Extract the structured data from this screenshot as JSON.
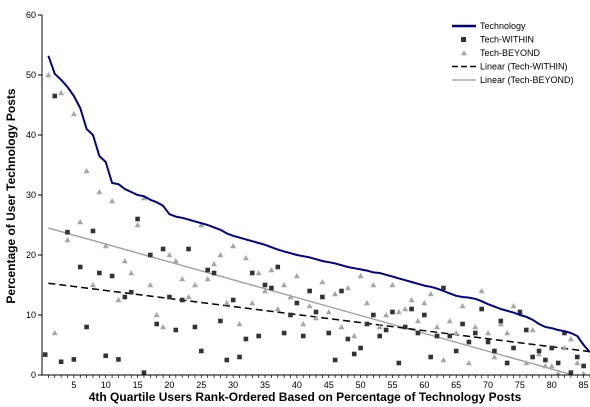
{
  "chart_data": {
    "type": "line",
    "xlabel": "4th Quartile Users Rank-Ordered Based on Percentage of Technology Posts",
    "ylabel": "Percentage of User Technology Posts",
    "xlim": [
      0,
      86
    ],
    "ylim": [
      0,
      60
    ],
    "xticks": [
      5,
      10,
      15,
      20,
      25,
      30,
      35,
      40,
      45,
      50,
      55,
      60,
      65,
      70,
      75,
      80,
      85
    ],
    "yticks": [
      0,
      10,
      20,
      30,
      40,
      50,
      60
    ],
    "grid": false,
    "legend_position": "top-right",
    "colors": {
      "technology": "#00008b",
      "within": "#333333",
      "beyond": "#a6a6a6",
      "linear_within": "#000000",
      "linear_beyond": "#a6a6a6"
    },
    "series": [
      {
        "name": "Technology",
        "kind": "line",
        "x": [
          1,
          2,
          3,
          4,
          5,
          6,
          7,
          8,
          9,
          10,
          11,
          12,
          13,
          14,
          15,
          16,
          17,
          18,
          19,
          20,
          21,
          22,
          23,
          24,
          25,
          26,
          27,
          28,
          29,
          30,
          31,
          32,
          33,
          34,
          35,
          36,
          37,
          38,
          39,
          40,
          41,
          42,
          43,
          44,
          45,
          46,
          47,
          48,
          49,
          50,
          51,
          52,
          53,
          54,
          55,
          56,
          57,
          58,
          59,
          60,
          61,
          62,
          63,
          64,
          65,
          66,
          67,
          68,
          69,
          70,
          71,
          72,
          73,
          74,
          75,
          76,
          77,
          78,
          79,
          80,
          81,
          82,
          83,
          84,
          85,
          86
        ],
        "values": [
          53.2,
          50.2,
          49.2,
          48.0,
          46.5,
          44.5,
          41.0,
          40.0,
          36.5,
          35.5,
          32.0,
          31.8,
          31.0,
          30.5,
          30.0,
          29.8,
          29.2,
          28.8,
          28.2,
          26.8,
          26.4,
          26.2,
          25.9,
          25.6,
          25.3,
          25.0,
          24.6,
          24.2,
          23.6,
          23.2,
          22.9,
          22.6,
          22.3,
          22.0,
          21.7,
          21.3,
          20.9,
          20.6,
          20.3,
          20.0,
          19.8,
          19.6,
          19.3,
          19.0,
          18.8,
          18.6,
          18.3,
          18.0,
          17.8,
          17.6,
          17.4,
          17.1,
          17.0,
          16.7,
          16.4,
          16.1,
          15.8,
          15.5,
          15.2,
          14.9,
          14.7,
          14.4,
          14.0,
          13.6,
          13.2,
          13.0,
          12.9,
          12.7,
          12.3,
          11.8,
          11.4,
          11.0,
          10.7,
          10.4,
          10.0,
          9.7,
          9.2,
          8.5,
          8.0,
          7.8,
          7.5,
          7.3,
          7.0,
          6.5,
          5.0,
          3.8
        ]
      },
      {
        "name": "Tech-WITHIN",
        "kind": "scatter",
        "points": [
          [
            0.5,
            3.4
          ],
          [
            2,
            46.5
          ],
          [
            3,
            2.2
          ],
          [
            4,
            23.8
          ],
          [
            5,
            2.6
          ],
          [
            6,
            18.0
          ],
          [
            7,
            8.0
          ],
          [
            8,
            24.0
          ],
          [
            9,
            17.0
          ],
          [
            10,
            3.2
          ],
          [
            11,
            16.5
          ],
          [
            12,
            2.6
          ],
          [
            13,
            13.0
          ],
          [
            14,
            13.8
          ],
          [
            15,
            26.0
          ],
          [
            16,
            0.4
          ],
          [
            17,
            20.0
          ],
          [
            18,
            8.5
          ],
          [
            19,
            21.0
          ],
          [
            20,
            13.0
          ],
          [
            21,
            7.5
          ],
          [
            22,
            12.5
          ],
          [
            23,
            21.0
          ],
          [
            24,
            8.0
          ],
          [
            25,
            4.0
          ],
          [
            26,
            17.5
          ],
          [
            27,
            17.0
          ],
          [
            28,
            9.0
          ],
          [
            29,
            2.5
          ],
          [
            30,
            12.5
          ],
          [
            31,
            3.0
          ],
          [
            32,
            6.0
          ],
          [
            33,
            17.0
          ],
          [
            34,
            6.5
          ],
          [
            35,
            15.0
          ],
          [
            36,
            14.5
          ],
          [
            37,
            18.0
          ],
          [
            38,
            7.0
          ],
          [
            39,
            10.0
          ],
          [
            40,
            12.0
          ],
          [
            41,
            6.5
          ],
          [
            42,
            14.0
          ],
          [
            43,
            10.5
          ],
          [
            44,
            13.0
          ],
          [
            45,
            7.0
          ],
          [
            46,
            2.5
          ],
          [
            47,
            14.0
          ],
          [
            48,
            6.0
          ],
          [
            49,
            3.5
          ],
          [
            50,
            4.5
          ],
          [
            51,
            8.5
          ],
          [
            52,
            10.0
          ],
          [
            53,
            6.5
          ],
          [
            54,
            7.5
          ],
          [
            55,
            10.5
          ],
          [
            56,
            2.0
          ],
          [
            57,
            8.0
          ],
          [
            58,
            11.0
          ],
          [
            59,
            7.0
          ],
          [
            60,
            10.0
          ],
          [
            61,
            3.0
          ],
          [
            62,
            6.5
          ],
          [
            63,
            14.5
          ],
          [
            64,
            6.5
          ],
          [
            65,
            4.0
          ],
          [
            66,
            8.5
          ],
          [
            67,
            5.5
          ],
          [
            68,
            7.0
          ],
          [
            69,
            11.0
          ],
          [
            70,
            5.5
          ],
          [
            71,
            4.0
          ],
          [
            72,
            9.0
          ],
          [
            73,
            2.0
          ],
          [
            74,
            4.5
          ],
          [
            75,
            10.5
          ],
          [
            76,
            7.5
          ],
          [
            77,
            3.0
          ],
          [
            78,
            4.0
          ],
          [
            79,
            2.5
          ],
          [
            80,
            4.5
          ],
          [
            81,
            2.0
          ],
          [
            82,
            7.0
          ],
          [
            83,
            0.4
          ],
          [
            84,
            3.0
          ],
          [
            85,
            1.5
          ]
        ]
      },
      {
        "name": "Tech-BEYOND",
        "kind": "scatter",
        "points": [
          [
            1,
            50.0
          ],
          [
            2,
            7.0
          ],
          [
            3,
            47.0
          ],
          [
            4,
            22.5
          ],
          [
            5,
            43.5
          ],
          [
            6,
            25.5
          ],
          [
            7,
            34.0
          ],
          [
            8,
            15.0
          ],
          [
            9,
            30.5
          ],
          [
            10,
            21.5
          ],
          [
            11,
            29.0
          ],
          [
            12,
            12.5
          ],
          [
            13,
            19.0
          ],
          [
            14,
            17.0
          ],
          [
            15,
            25.0
          ],
          [
            16,
            29.5
          ],
          [
            17,
            15.0
          ],
          [
            18,
            10.0
          ],
          [
            19,
            8.0
          ],
          [
            20,
            20.0
          ],
          [
            21,
            19.0
          ],
          [
            22,
            16.0
          ],
          [
            23,
            13.0
          ],
          [
            24,
            15.0
          ],
          [
            25,
            25.0
          ],
          [
            26,
            16.0
          ],
          [
            27,
            18.5
          ],
          [
            28,
            20.0
          ],
          [
            29,
            12.0
          ],
          [
            30,
            21.5
          ],
          [
            31,
            8.5
          ],
          [
            32,
            19.5
          ],
          [
            33,
            12.0
          ],
          [
            34,
            17.0
          ],
          [
            35,
            14.0
          ],
          [
            36,
            17.5
          ],
          [
            37,
            11.0
          ],
          [
            38,
            15.0
          ],
          [
            39,
            13.0
          ],
          [
            40,
            16.5
          ],
          [
            41,
            8.5
          ],
          [
            42,
            11.5
          ],
          [
            43,
            9.5
          ],
          [
            44,
            15.5
          ],
          [
            45,
            10.5
          ],
          [
            46,
            13.5
          ],
          [
            47,
            8.0
          ],
          [
            48,
            14.5
          ],
          [
            49,
            6.5
          ],
          [
            50,
            16.5
          ],
          [
            51,
            12.0
          ],
          [
            52,
            15.0
          ],
          [
            53,
            8.0
          ],
          [
            54,
            10.0
          ],
          [
            55,
            15.0
          ],
          [
            56,
            10.5
          ],
          [
            57,
            11.0
          ],
          [
            58,
            12.5
          ],
          [
            59,
            9.0
          ],
          [
            60,
            12.0
          ],
          [
            61,
            13.5
          ],
          [
            62,
            8.0
          ],
          [
            63,
            2.5
          ],
          [
            64,
            9.0
          ],
          [
            65,
            7.0
          ],
          [
            66,
            11.5
          ],
          [
            67,
            2.0
          ],
          [
            68,
            8.0
          ],
          [
            69,
            14.0
          ],
          [
            70,
            7.0
          ],
          [
            71,
            3.0
          ],
          [
            72,
            8.5
          ],
          [
            73,
            7.0
          ],
          [
            74,
            11.5
          ],
          [
            75,
            10.5
          ],
          [
            76,
            2.0
          ],
          [
            77,
            7.5
          ],
          [
            78,
            3.5
          ],
          [
            79,
            1.5
          ],
          [
            80,
            1.5
          ],
          [
            81,
            0.2
          ],
          [
            82,
            4.5
          ],
          [
            83,
            6.0
          ],
          [
            84,
            2.0
          ],
          [
            85,
            0.2
          ]
        ]
      },
      {
        "name": "Linear (Tech-WITHIN)",
        "kind": "trendline",
        "x": [
          1,
          86
        ],
        "values": [
          15.3,
          3.9
        ]
      },
      {
        "name": "Linear (Tech-BEYOND)",
        "kind": "trendline",
        "x": [
          1,
          86
        ],
        "values": [
          24.5,
          -0.8
        ]
      }
    ]
  }
}
